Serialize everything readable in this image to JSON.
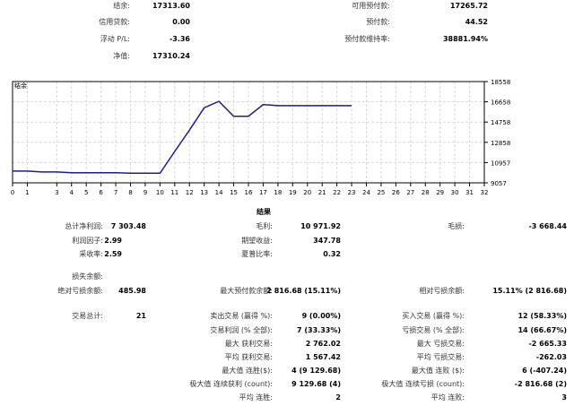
{
  "summary": {
    "balance_label": "结余:",
    "balance": "17313.60",
    "credit_label": "信用贷款:",
    "credit": "0.00",
    "floating_pl_label": "浮动 P/L:",
    "floating_pl": "-3.36",
    "equity_label": "净值:",
    "equity": "17310.24",
    "free_margin_label": "可用预付款:",
    "free_margin": "17265.72",
    "margin_label": "预付款:",
    "margin": "44.52",
    "margin_level_label": "预付款维持率:",
    "margin_level": "38881.94%"
  },
  "chart_data": {
    "type": "line",
    "title": "结余",
    "x": [
      0,
      1,
      2,
      3,
      4,
      5,
      6,
      7,
      8,
      9,
      10,
      11,
      12,
      13,
      14,
      15,
      16,
      17,
      18,
      19,
      20,
      21,
      22,
      23
    ],
    "xticks": [
      0,
      1,
      3,
      4,
      5,
      6,
      7,
      8,
      9,
      10,
      11,
      12,
      13,
      14,
      15,
      16,
      17,
      18,
      19,
      20,
      21,
      22,
      23,
      24,
      25,
      26,
      27,
      28,
      29,
      30,
      31,
      32
    ],
    "series": [
      {
        "values": [
          10160,
          10160,
          10080,
          10080,
          10000,
          10000,
          10000,
          10000,
          9960,
          9960,
          9960,
          12000,
          14000,
          16100,
          16700,
          15300,
          15300,
          16400,
          16300,
          16300,
          16300,
          16300,
          16300,
          16300
        ]
      }
    ],
    "xlim": [
      0,
      32
    ],
    "yticks": [
      "18558",
      "16658",
      "14758",
      "12858",
      "10957",
      "9057"
    ],
    "ylim": [
      9057,
      18558
    ],
    "grid": true,
    "color": "#1c1c8a"
  },
  "results": {
    "title": "结果",
    "total_net_profit_label": "总计净利润:",
    "total_net_profit": "7 303.48",
    "gross_profit_label": "毛利:",
    "gross_profit": "10 971.92",
    "gross_loss_label": "毛损:",
    "gross_loss": "-3 668.44",
    "profit_factor_label": "利润因子:",
    "profit_factor": "2.99",
    "expected_payoff_label": "期望收益:",
    "expected_payoff": "347.78",
    "recovery_factor_label": "采收率:",
    "recovery_factor": "2.59",
    "sharpe_ratio_label": "夏普比率:",
    "sharpe_ratio": "0.32",
    "balance_drawdown_label": "损失余额:",
    "absolute_drawdown_label": "绝对亏损余额:",
    "absolute_drawdown": "485.98",
    "maximal_drawdown_label": "最大预付款余额:",
    "maximal_drawdown": "2 816.68 (15.11%)",
    "relative_drawdown_label": "相对亏损余额:",
    "relative_drawdown": "15.11% (2 816.68)",
    "total_trades_label": "交易总计:",
    "total_trades": "21",
    "short_trades_label": "卖出交易 (赢得 %):",
    "short_trades": "9 (0.00%)",
    "long_trades_label": "买入交易 (赢得 %):",
    "long_trades": "12 (58.33%)",
    "profit_trades_label": "交易利润 (% 全部):",
    "profit_trades": "7 (33.33%)",
    "loss_trades_label": "亏损交易 (% 全部):",
    "loss_trades": "14 (66.67%)",
    "largest_profit_label": "最大 获利交易:",
    "largest_profit": "2 762.02",
    "largest_loss_label": "最大 亏损交易:",
    "largest_loss": "-2 665.33",
    "average_profit_label": "平均 获利交易:",
    "average_profit": "1 567.42",
    "average_loss_label": "平均 亏损交易:",
    "average_loss": "-262.03",
    "max_consec_wins_label": "最大值 连胜($):",
    "max_consec_wins": "4 (9 129.68)",
    "max_consec_losses_label": "最大值 连败 ($):",
    "max_consec_losses": "6 (-407.24)",
    "max_consec_profit_label": "极大值 连续获利 (count):",
    "max_consec_profit": "9 129.68 (4)",
    "max_consec_loss_label": "极大值 连续亏损 (count):",
    "max_consec_loss": "-2 816.68 (2)",
    "avg_consec_wins_label": "平均 连胜:",
    "avg_consec_wins": "2",
    "avg_consec_losses_label": "平均 连败:",
    "avg_consec_losses": "3"
  }
}
